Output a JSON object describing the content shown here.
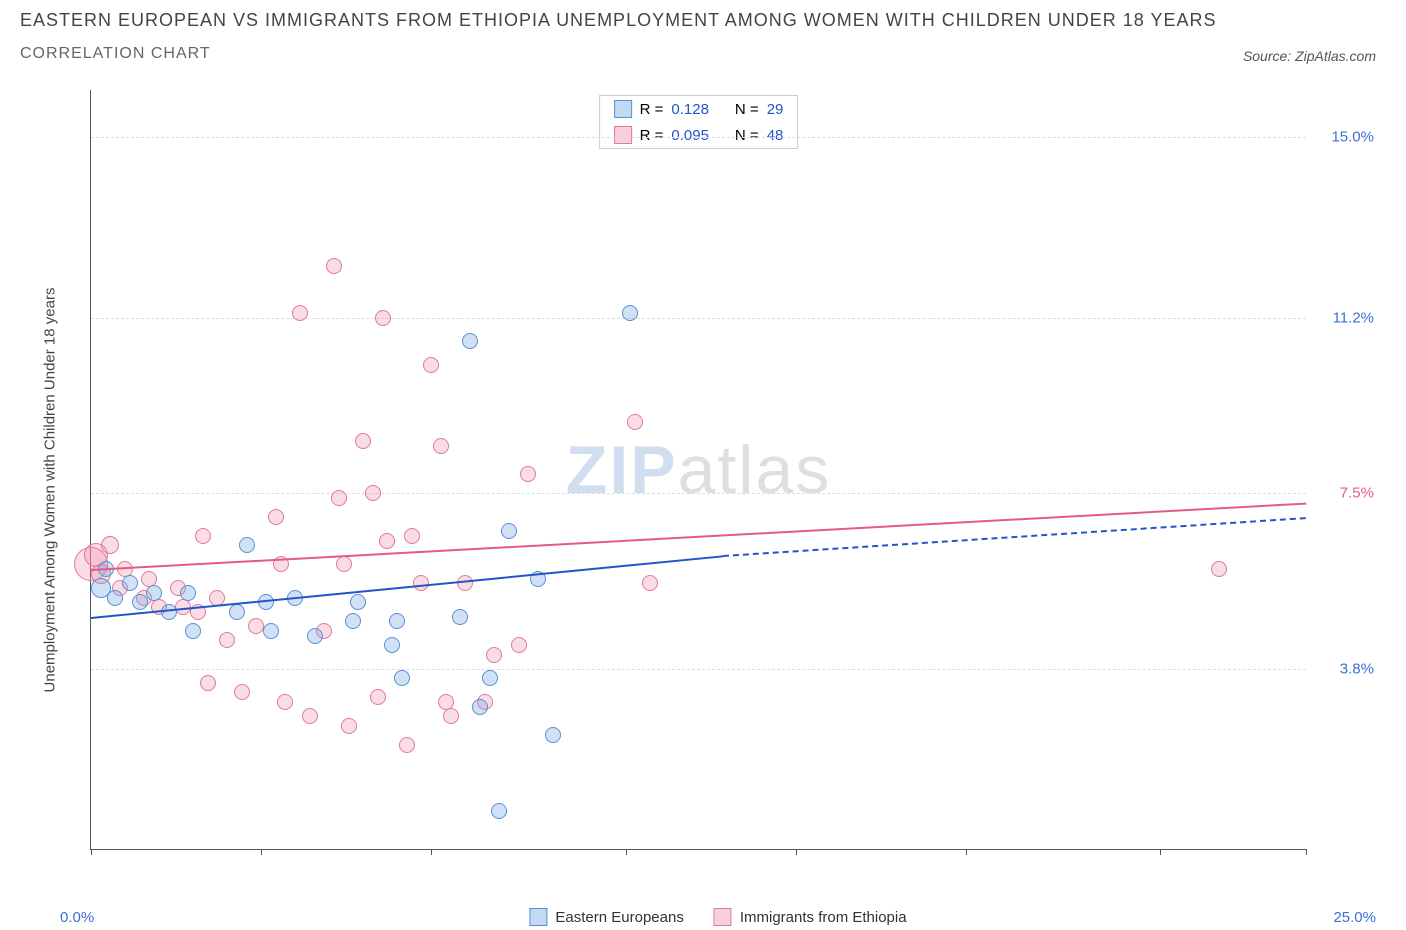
{
  "title": "EASTERN EUROPEAN VS IMMIGRANTS FROM ETHIOPIA UNEMPLOYMENT AMONG WOMEN WITH CHILDREN UNDER 18 YEARS",
  "subtitle": "CORRELATION CHART",
  "source": "Source: ZipAtlas.com",
  "ylabel": "Unemployment Among Women with Children Under 18 years",
  "watermark_zip": "ZIP",
  "watermark_atlas": "atlas",
  "chart": {
    "background_color": "#ffffff",
    "axis_color": "#555555",
    "grid_color": "#dddddd",
    "xlim": [
      0,
      25
    ],
    "ylim": [
      0,
      16
    ],
    "xticks": [
      0,
      3.5,
      7,
      11,
      14.5,
      18,
      22,
      25
    ],
    "ytick_rows": [
      {
        "value": 15.0,
        "label": "15.0%",
        "color": "#3b6fd6"
      },
      {
        "value": 11.2,
        "label": "11.2%",
        "color": "#3b6fd6"
      },
      {
        "value": 7.5,
        "label": "7.5%",
        "color": "#e55a8a"
      },
      {
        "value": 3.8,
        "label": "3.8%",
        "color": "#3b6fd6"
      }
    ],
    "xlabel_left": {
      "text": "0.0%",
      "color": "#3b6fd6"
    },
    "xlabel_right": {
      "text": "25.0%",
      "color": "#3b6fd6"
    }
  },
  "series_a": {
    "name": "Eastern Europeans",
    "fill": "rgba(120,170,230,0.35)",
    "stroke": "#5a8fd6",
    "swatch_fill": "rgba(120,170,230,0.45)",
    "swatch_stroke": "#5a8fd6",
    "R_label": "R =",
    "R_value": "0.128",
    "N_label": "N =",
    "N_value": "29",
    "stat_color": "#2255cc",
    "points": [
      {
        "x": 0.2,
        "y": 5.5,
        "r": 10
      },
      {
        "x": 0.3,
        "y": 5.9,
        "r": 8
      },
      {
        "x": 0.5,
        "y": 5.3,
        "r": 8
      },
      {
        "x": 0.8,
        "y": 5.6,
        "r": 8
      },
      {
        "x": 1.0,
        "y": 5.2,
        "r": 8
      },
      {
        "x": 1.3,
        "y": 5.4,
        "r": 8
      },
      {
        "x": 1.6,
        "y": 5.0,
        "r": 8
      },
      {
        "x": 2.0,
        "y": 5.4,
        "r": 8
      },
      {
        "x": 2.1,
        "y": 4.6,
        "r": 8
      },
      {
        "x": 3.0,
        "y": 5.0,
        "r": 8
      },
      {
        "x": 3.2,
        "y": 6.4,
        "r": 8
      },
      {
        "x": 3.6,
        "y": 5.2,
        "r": 8
      },
      {
        "x": 3.7,
        "y": 4.6,
        "r": 8
      },
      {
        "x": 4.2,
        "y": 5.3,
        "r": 8
      },
      {
        "x": 4.6,
        "y": 4.5,
        "r": 8
      },
      {
        "x": 5.4,
        "y": 4.8,
        "r": 8
      },
      {
        "x": 5.5,
        "y": 5.2,
        "r": 8
      },
      {
        "x": 6.2,
        "y": 4.3,
        "r": 8
      },
      {
        "x": 6.3,
        "y": 4.8,
        "r": 8
      },
      {
        "x": 6.4,
        "y": 3.6,
        "r": 8
      },
      {
        "x": 7.6,
        "y": 4.9,
        "r": 8
      },
      {
        "x": 7.8,
        "y": 10.7,
        "r": 8
      },
      {
        "x": 8.0,
        "y": 3.0,
        "r": 8
      },
      {
        "x": 8.2,
        "y": 3.6,
        "r": 8
      },
      {
        "x": 8.4,
        "y": 0.8,
        "r": 8
      },
      {
        "x": 8.6,
        "y": 6.7,
        "r": 8
      },
      {
        "x": 9.2,
        "y": 5.7,
        "r": 8
      },
      {
        "x": 9.5,
        "y": 2.4,
        "r": 8
      },
      {
        "x": 11.1,
        "y": 11.3,
        "r": 8
      }
    ],
    "trend": {
      "x1": 0,
      "y1": 4.9,
      "x2": 13,
      "y2": 6.2,
      "color": "#2255cc",
      "dash_x2": 25,
      "dash_y2": 7.0
    }
  },
  "series_b": {
    "name": "Immigrants from Ethiopia",
    "fill": "rgba(240,150,175,0.33)",
    "stroke": "#e07a9a",
    "swatch_fill": "rgba(240,150,175,0.45)",
    "swatch_stroke": "#e07a9a",
    "R_label": "R =",
    "R_value": "0.095",
    "N_label": "N =",
    "N_value": "48",
    "stat_color": "#2255cc",
    "points": [
      {
        "x": 0.0,
        "y": 6.0,
        "r": 17
      },
      {
        "x": 0.1,
        "y": 6.2,
        "r": 12
      },
      {
        "x": 0.2,
        "y": 5.8,
        "r": 10
      },
      {
        "x": 0.4,
        "y": 6.4,
        "r": 9
      },
      {
        "x": 0.6,
        "y": 5.5,
        "r": 8
      },
      {
        "x": 0.7,
        "y": 5.9,
        "r": 8
      },
      {
        "x": 1.1,
        "y": 5.3,
        "r": 8
      },
      {
        "x": 1.2,
        "y": 5.7,
        "r": 8
      },
      {
        "x": 1.4,
        "y": 5.1,
        "r": 8
      },
      {
        "x": 1.8,
        "y": 5.5,
        "r": 8
      },
      {
        "x": 1.9,
        "y": 5.1,
        "r": 8
      },
      {
        "x": 2.2,
        "y": 5.0,
        "r": 8
      },
      {
        "x": 2.3,
        "y": 6.6,
        "r": 8
      },
      {
        "x": 2.4,
        "y": 3.5,
        "r": 8
      },
      {
        "x": 2.6,
        "y": 5.3,
        "r": 8
      },
      {
        "x": 2.8,
        "y": 4.4,
        "r": 8
      },
      {
        "x": 3.1,
        "y": 3.3,
        "r": 8
      },
      {
        "x": 3.4,
        "y": 4.7,
        "r": 8
      },
      {
        "x": 3.8,
        "y": 7.0,
        "r": 8
      },
      {
        "x": 3.9,
        "y": 6.0,
        "r": 8
      },
      {
        "x": 4.0,
        "y": 3.1,
        "r": 8
      },
      {
        "x": 4.3,
        "y": 11.3,
        "r": 8
      },
      {
        "x": 4.5,
        "y": 2.8,
        "r": 8
      },
      {
        "x": 4.8,
        "y": 4.6,
        "r": 8
      },
      {
        "x": 5.0,
        "y": 12.3,
        "r": 8
      },
      {
        "x": 5.1,
        "y": 7.4,
        "r": 8
      },
      {
        "x": 5.2,
        "y": 6.0,
        "r": 8
      },
      {
        "x": 5.3,
        "y": 2.6,
        "r": 8
      },
      {
        "x": 5.6,
        "y": 8.6,
        "r": 8
      },
      {
        "x": 5.8,
        "y": 7.5,
        "r": 8
      },
      {
        "x": 5.9,
        "y": 3.2,
        "r": 8
      },
      {
        "x": 6.0,
        "y": 11.2,
        "r": 8
      },
      {
        "x": 6.1,
        "y": 6.5,
        "r": 8
      },
      {
        "x": 6.5,
        "y": 2.2,
        "r": 8
      },
      {
        "x": 6.6,
        "y": 6.6,
        "r": 8
      },
      {
        "x": 6.8,
        "y": 5.6,
        "r": 8
      },
      {
        "x": 7.0,
        "y": 10.2,
        "r": 8
      },
      {
        "x": 7.2,
        "y": 8.5,
        "r": 8
      },
      {
        "x": 7.3,
        "y": 3.1,
        "r": 8
      },
      {
        "x": 7.4,
        "y": 2.8,
        "r": 8
      },
      {
        "x": 7.7,
        "y": 5.6,
        "r": 8
      },
      {
        "x": 8.1,
        "y": 3.1,
        "r": 8
      },
      {
        "x": 8.3,
        "y": 4.1,
        "r": 8
      },
      {
        "x": 8.8,
        "y": 4.3,
        "r": 8
      },
      {
        "x": 9.0,
        "y": 7.9,
        "r": 8
      },
      {
        "x": 11.2,
        "y": 9.0,
        "r": 8
      },
      {
        "x": 11.5,
        "y": 5.6,
        "r": 8
      },
      {
        "x": 23.2,
        "y": 5.9,
        "r": 8
      }
    ],
    "trend": {
      "x1": 0,
      "y1": 5.9,
      "x2": 25,
      "y2": 7.3,
      "color": "#e55a8a"
    }
  },
  "legend_bottom": {
    "a": "Eastern Europeans",
    "b": "Immigrants from Ethiopia"
  }
}
